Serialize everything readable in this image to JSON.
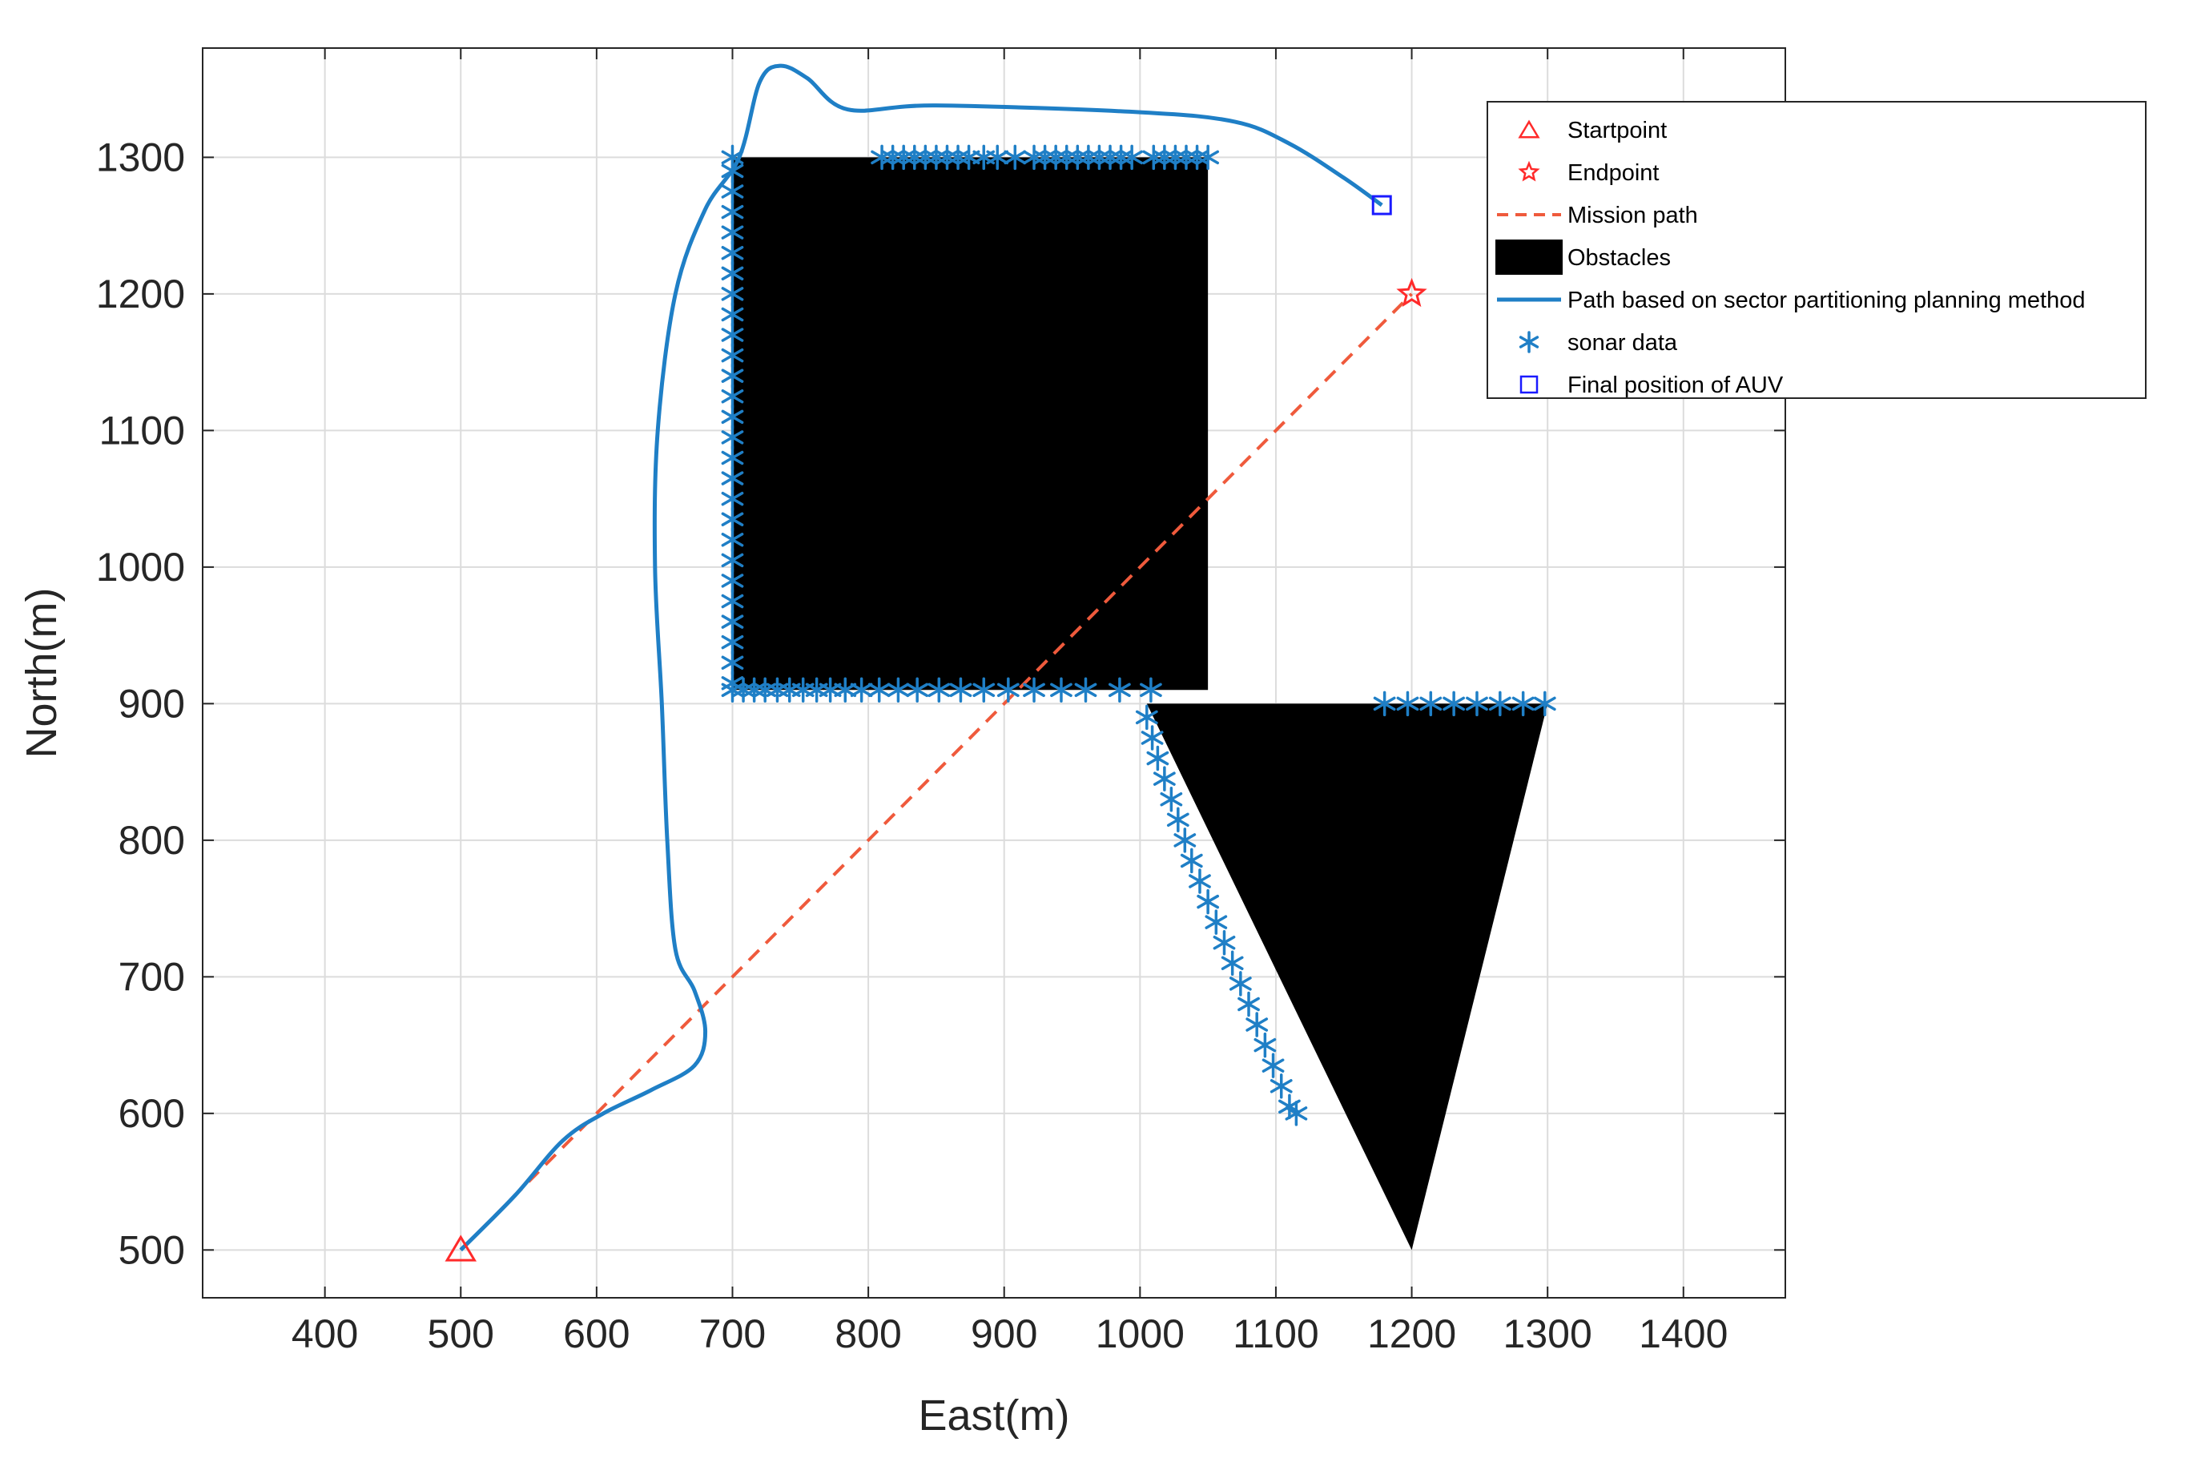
{
  "chart_data": {
    "type": "scatter",
    "xlabel": "East(m)",
    "ylabel": "North(m)",
    "xlim": [
      310,
      1475
    ],
    "ylim": [
      465,
      1380
    ],
    "xticks": [
      400,
      500,
      600,
      700,
      800,
      900,
      1000,
      1100,
      1200,
      1300,
      1400
    ],
    "yticks": [
      500,
      600,
      700,
      800,
      900,
      1000,
      1100,
      1200,
      1300
    ],
    "grid": true,
    "legend_position": "top-right",
    "colors": {
      "start": "#ff2a2a",
      "end": "#ff2a2a",
      "mission": "#ef5a3c",
      "obstacle": "#000000",
      "path": "#1f7fc6",
      "sonar": "#1f7fc6",
      "final": "#1a1aff"
    },
    "legend": [
      {
        "key": "start",
        "label": "Startpoint",
        "marker": "triangle"
      },
      {
        "key": "end",
        "label": "Endpoint",
        "marker": "star"
      },
      {
        "key": "mission",
        "label": "Mission path",
        "marker": "dashed-line"
      },
      {
        "key": "obstacle",
        "label": "Obstacles",
        "marker": "filled-box"
      },
      {
        "key": "path",
        "label": "Path based on sector partitioning planning method",
        "marker": "solid-line"
      },
      {
        "key": "sonar",
        "label": "sonar data",
        "marker": "asterisk"
      },
      {
        "key": "final",
        "label": "Final position of AUV",
        "marker": "square"
      }
    ],
    "start_point": [
      500,
      500
    ],
    "end_point": [
      1200,
      1200
    ],
    "final_position": [
      1178,
      1265
    ],
    "mission_path": [
      [
        500,
        500
      ],
      [
        1200,
        1200
      ]
    ],
    "obstacles": [
      {
        "shape": "rectangle",
        "vertices": [
          [
            700,
            910
          ],
          [
            1050,
            910
          ],
          [
            1050,
            1300
          ],
          [
            700,
            1300
          ]
        ]
      },
      {
        "shape": "triangle",
        "vertices": [
          [
            1005,
            900
          ],
          [
            1300,
            900
          ],
          [
            1200,
            500
          ]
        ]
      }
    ],
    "auv_path": [
      [
        500,
        500
      ],
      [
        540,
        540
      ],
      [
        575,
        580
      ],
      [
        605,
        600
      ],
      [
        640,
        617
      ],
      [
        672,
        635
      ],
      [
        680,
        660
      ],
      [
        672,
        690
      ],
      [
        658,
        720
      ],
      [
        652,
        800
      ],
      [
        648,
        900
      ],
      [
        643,
        1000
      ],
      [
        645,
        1100
      ],
      [
        658,
        1200
      ],
      [
        680,
        1262
      ],
      [
        705,
        1300
      ],
      [
        720,
        1355
      ],
      [
        735,
        1367
      ],
      [
        755,
        1358
      ],
      [
        785,
        1335
      ],
      [
        850,
        1338
      ],
      [
        1000,
        1333
      ],
      [
        1070,
        1326
      ],
      [
        1110,
        1310
      ],
      [
        1150,
        1285
      ],
      [
        1178,
        1265
      ]
    ],
    "sonar_data": [
      [
        700,
        1300
      ],
      [
        700,
        1290
      ],
      [
        700,
        1275
      ],
      [
        700,
        1260
      ],
      [
        700,
        1245
      ],
      [
        700,
        1230
      ],
      [
        700,
        1215
      ],
      [
        700,
        1200
      ],
      [
        700,
        1185
      ],
      [
        700,
        1170
      ],
      [
        700,
        1155
      ],
      [
        700,
        1140
      ],
      [
        700,
        1125
      ],
      [
        700,
        1110
      ],
      [
        700,
        1095
      ],
      [
        700,
        1080
      ],
      [
        700,
        1065
      ],
      [
        700,
        1050
      ],
      [
        700,
        1035
      ],
      [
        700,
        1020
      ],
      [
        700,
        1005
      ],
      [
        700,
        990
      ],
      [
        700,
        975
      ],
      [
        700,
        960
      ],
      [
        700,
        945
      ],
      [
        700,
        930
      ],
      [
        700,
        915
      ],
      [
        700,
        910
      ],
      [
        708,
        910
      ],
      [
        716,
        910
      ],
      [
        724,
        910
      ],
      [
        733,
        910
      ],
      [
        742,
        910
      ],
      [
        752,
        910
      ],
      [
        762,
        910
      ],
      [
        772,
        910
      ],
      [
        783,
        910
      ],
      [
        795,
        910
      ],
      [
        808,
        910
      ],
      [
        822,
        910
      ],
      [
        836,
        910
      ],
      [
        852,
        910
      ],
      [
        868,
        910
      ],
      [
        885,
        910
      ],
      [
        903,
        910
      ],
      [
        922,
        910
      ],
      [
        942,
        910
      ],
      [
        960,
        910
      ],
      [
        985,
        910
      ],
      [
        1008,
        910
      ],
      [
        810,
        1300
      ],
      [
        818,
        1300
      ],
      [
        826,
        1300
      ],
      [
        834,
        1300
      ],
      [
        842,
        1300
      ],
      [
        850,
        1300
      ],
      [
        858,
        1300
      ],
      [
        866,
        1300
      ],
      [
        874,
        1300
      ],
      [
        885,
        1300
      ],
      [
        895,
        1300
      ],
      [
        908,
        1300
      ],
      [
        922,
        1300
      ],
      [
        930,
        1300
      ],
      [
        938,
        1300
      ],
      [
        946,
        1300
      ],
      [
        954,
        1300
      ],
      [
        962,
        1300
      ],
      [
        970,
        1300
      ],
      [
        978,
        1300
      ],
      [
        986,
        1300
      ],
      [
        994,
        1300
      ],
      [
        1010,
        1300
      ],
      [
        1018,
        1300
      ],
      [
        1026,
        1300
      ],
      [
        1034,
        1300
      ],
      [
        1042,
        1300
      ],
      [
        1050,
        1300
      ],
      [
        1005,
        890
      ],
      [
        1009,
        875
      ],
      [
        1013,
        860
      ],
      [
        1018,
        845
      ],
      [
        1023,
        830
      ],
      [
        1028,
        815
      ],
      [
        1033,
        800
      ],
      [
        1038,
        785
      ],
      [
        1044,
        770
      ],
      [
        1050,
        755
      ],
      [
        1056,
        740
      ],
      [
        1062,
        725
      ],
      [
        1068,
        710
      ],
      [
        1074,
        695
      ],
      [
        1080,
        680
      ],
      [
        1086,
        665
      ],
      [
        1092,
        650
      ],
      [
        1098,
        635
      ],
      [
        1104,
        620
      ],
      [
        1110,
        605
      ],
      [
        1115,
        600
      ],
      [
        1180,
        900
      ],
      [
        1197,
        900
      ],
      [
        1214,
        900
      ],
      [
        1231,
        900
      ],
      [
        1248,
        900
      ],
      [
        1265,
        900
      ],
      [
        1282,
        900
      ],
      [
        1298,
        900
      ]
    ]
  }
}
